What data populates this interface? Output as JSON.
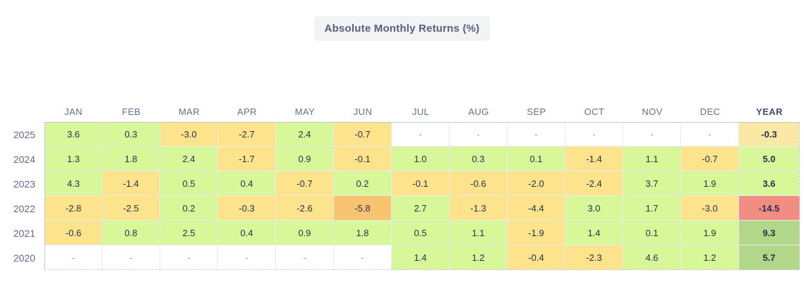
{
  "title": "Absolute Monthly Returns (%)",
  "palette": {
    "green": "#d8f799",
    "strong_green": "#b3d788",
    "yellow": "#fde38c",
    "pale_yellow": "#fae9a4",
    "orange": "#f9c471",
    "red": "#f28d84",
    "empty": "#ffffff"
  },
  "chart_data": {
    "type": "heatmap",
    "title": "Absolute Monthly Returns (%)",
    "columns": [
      "JAN",
      "FEB",
      "MAR",
      "APR",
      "MAY",
      "JUN",
      "JUL",
      "AUG",
      "SEP",
      "OCT",
      "NOV",
      "DEC",
      "YEAR"
    ],
    "rows": [
      {
        "year": "2025",
        "values": [
          "3.6",
          "0.3",
          "-3.0",
          "-2.7",
          "2.4",
          "-0.7",
          "-",
          "-",
          "-",
          "-",
          "-",
          "-",
          "-0.3"
        ],
        "colors": [
          "green",
          "green",
          "yellow",
          "yellow",
          "green",
          "yellow",
          "empty",
          "empty",
          "empty",
          "empty",
          "empty",
          "empty",
          "pale_yellow"
        ]
      },
      {
        "year": "2024",
        "values": [
          "1.3",
          "1.8",
          "2.4",
          "-1.7",
          "0.9",
          "-0.1",
          "1.0",
          "0.3",
          "0.1",
          "-1.4",
          "1.1",
          "-0.7",
          "5.0"
        ],
        "colors": [
          "green",
          "green",
          "green",
          "yellow",
          "green",
          "yellow",
          "green",
          "green",
          "green",
          "yellow",
          "green",
          "yellow",
          "green"
        ]
      },
      {
        "year": "2023",
        "values": [
          "4.3",
          "-1.4",
          "0.5",
          "0.4",
          "-0.7",
          "0.2",
          "-0.1",
          "-0.6",
          "-2.0",
          "-2.4",
          "3.7",
          "1.9",
          "3.6"
        ],
        "colors": [
          "green",
          "yellow",
          "green",
          "green",
          "yellow",
          "green",
          "yellow",
          "yellow",
          "yellow",
          "yellow",
          "green",
          "green",
          "green"
        ]
      },
      {
        "year": "2022",
        "values": [
          "-2.8",
          "-2.5",
          "0.2",
          "-0.3",
          "-2.6",
          "-5.8",
          "2.7",
          "-1.3",
          "-4.4",
          "3.0",
          "1.7",
          "-3.0",
          "-14.5"
        ],
        "colors": [
          "yellow",
          "yellow",
          "green",
          "yellow",
          "yellow",
          "orange",
          "green",
          "yellow",
          "yellow",
          "green",
          "green",
          "yellow",
          "red"
        ]
      },
      {
        "year": "2021",
        "values": [
          "-0.6",
          "0.8",
          "2.5",
          "0.4",
          "0.9",
          "1.8",
          "0.5",
          "1.1",
          "-1.9",
          "1.4",
          "0.1",
          "1.9",
          "9.3"
        ],
        "colors": [
          "yellow",
          "green",
          "green",
          "green",
          "green",
          "green",
          "green",
          "green",
          "yellow",
          "green",
          "green",
          "green",
          "strong_green"
        ]
      },
      {
        "year": "2020",
        "values": [
          "-",
          "-",
          "-",
          "-",
          "-",
          "-",
          "1.4",
          "1.2",
          "-0.4",
          "-2.3",
          "4.6",
          "1.2",
          "5.7"
        ],
        "colors": [
          "empty",
          "empty",
          "empty",
          "empty",
          "empty",
          "empty",
          "green",
          "green",
          "yellow",
          "yellow",
          "green",
          "green",
          "strong_green"
        ]
      }
    ]
  }
}
